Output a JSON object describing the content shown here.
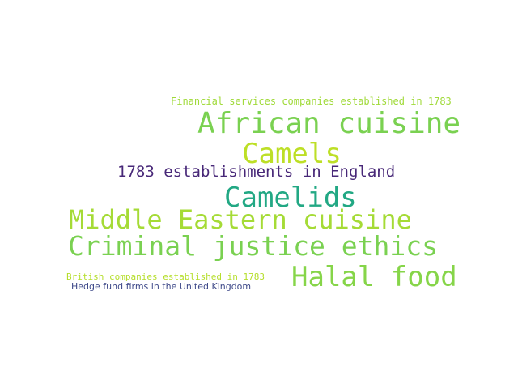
{
  "words": [
    {
      "text": "Financial services companies established in 1783",
      "color": "#a0da39"
    },
    {
      "text": "African cuisine",
      "color": "#7ad151"
    },
    {
      "text": "Camels",
      "color": "#bddf26"
    },
    {
      "text": "1783 establishments in England",
      "color": "#482878"
    },
    {
      "text": "Camelids",
      "color": "#22a884"
    },
    {
      "text": "Middle Eastern cuisine",
      "color": "#a5db36"
    },
    {
      "text": "Criminal justice ethics",
      "color": "#7ad151"
    },
    {
      "text": "Halal food",
      "color": "#86d549"
    },
    {
      "text": "British companies established in 1783",
      "color": "#b5de2b"
    },
    {
      "text": "Hedge fund firms in the United Kingdom",
      "color": "#3e4989"
    }
  ]
}
